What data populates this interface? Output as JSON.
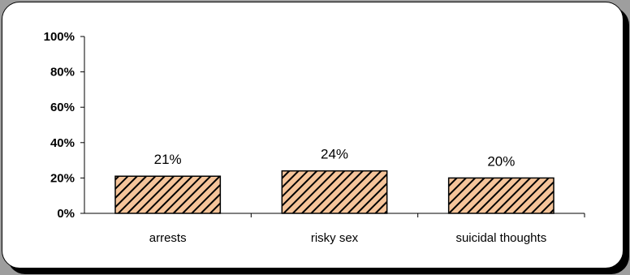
{
  "chart_data": {
    "type": "bar",
    "title": "",
    "xlabel": "",
    "ylabel": "",
    "ylim": [
      0,
      100
    ],
    "y_ticks": [
      "0%",
      "20%",
      "40%",
      "60%",
      "80%",
      "100%"
    ],
    "categories": [
      "arrests",
      "risky sex",
      "suicidal thoughts"
    ],
    "values": [
      21,
      24,
      20
    ],
    "data_labels": [
      "21%",
      "24%",
      "20%"
    ],
    "bar_fill": "#f5c49a",
    "bar_hatch": "diagonal-stripes",
    "hatch_color": "#000000",
    "grid": false,
    "legend": "none"
  }
}
